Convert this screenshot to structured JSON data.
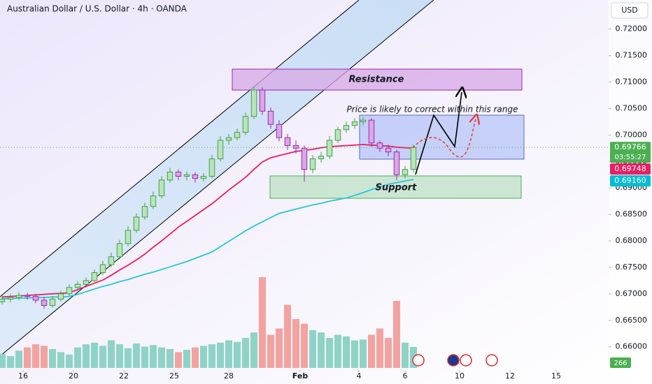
{
  "chart_data": {
    "type": "candlestick",
    "title": "Australian Dollar / U.S. Dollar · 4h · OANDA",
    "currency": "USD",
    "up_color": "#43a047",
    "up_fill": "#b9e4bb",
    "down_color": "#9c27b0",
    "down_fill": "#d7a8e3",
    "volume_up_color": "#8fd3c6",
    "volume_down_color": "#f2a3a0",
    "x": [
      0,
      2,
      4,
      6,
      8,
      10,
      12,
      14,
      16,
      18,
      20,
      22,
      24,
      26,
      28,
      30,
      32,
      34,
      36,
      38,
      40,
      42,
      44,
      46,
      48,
      50,
      52,
      54,
      56,
      58,
      60,
      62,
      64,
      66,
      68,
      70,
      72,
      74,
      76,
      78,
      80,
      82,
      84,
      86,
      88,
      90,
      92,
      94,
      96,
      98
    ],
    "open": [
      0.6685,
      0.669,
      0.6693,
      0.6697,
      0.6695,
      0.6688,
      0.6678,
      0.669,
      0.67,
      0.6712,
      0.6718,
      0.6725,
      0.674,
      0.6755,
      0.677,
      0.6795,
      0.682,
      0.6845,
      0.6865,
      0.6885,
      0.6915,
      0.693,
      0.6922,
      0.6925,
      0.6918,
      0.6922,
      0.6955,
      0.699,
      0.6995,
      0.7005,
      0.7035,
      0.7085,
      0.7045,
      0.702,
      0.6995,
      0.698,
      0.6975,
      0.6935,
      0.6955,
      0.696,
      0.699,
      0.701,
      0.7018,
      0.7025,
      0.7028,
      0.6985,
      0.6975,
      0.6968,
      0.6925,
      0.6935
    ],
    "high": [
      0.6697,
      0.67,
      0.6703,
      0.6702,
      0.67,
      0.6694,
      0.6696,
      0.6706,
      0.6718,
      0.6724,
      0.6731,
      0.6746,
      0.6762,
      0.6778,
      0.6802,
      0.6828,
      0.6852,
      0.6872,
      0.6893,
      0.6922,
      0.6938,
      0.6935,
      0.6931,
      0.693,
      0.6928,
      0.6962,
      0.6998,
      0.7002,
      0.7012,
      0.7042,
      0.7092,
      0.709,
      0.7052,
      0.7028,
      0.7002,
      0.699,
      0.698,
      0.6962,
      0.6968,
      0.6998,
      0.7016,
      0.7025,
      0.7032,
      0.7034,
      0.7032,
      0.699,
      0.6982,
      0.6972,
      0.6942,
      0.6982
    ],
    "low": [
      0.668,
      0.6684,
      0.6688,
      0.6689,
      0.6682,
      0.6672,
      0.6674,
      0.6686,
      0.6696,
      0.6706,
      0.6712,
      0.672,
      0.6735,
      0.675,
      0.6765,
      0.679,
      0.6815,
      0.684,
      0.686,
      0.688,
      0.691,
      0.6915,
      0.6914,
      0.691,
      0.6912,
      0.6918,
      0.695,
      0.6982,
      0.699,
      0.7,
      0.703,
      0.7038,
      0.7012,
      0.6988,
      0.6972,
      0.6965,
      0.6912,
      0.6928,
      0.6948,
      0.6955,
      0.6985,
      0.7004,
      0.7012,
      0.7018,
      0.6978,
      0.6968,
      0.696,
      0.6915,
      0.6918,
      0.693
    ],
    "close": [
      0.669,
      0.6693,
      0.6697,
      0.6695,
      0.6688,
      0.6678,
      0.669,
      0.67,
      0.6712,
      0.6718,
      0.6725,
      0.674,
      0.6755,
      0.677,
      0.6795,
      0.682,
      0.6845,
      0.6865,
      0.6885,
      0.6915,
      0.693,
      0.6922,
      0.6925,
      0.6918,
      0.6922,
      0.6955,
      0.699,
      0.6995,
      0.7005,
      0.7035,
      0.7085,
      0.7045,
      0.702,
      0.6995,
      0.698,
      0.6975,
      0.6935,
      0.6955,
      0.696,
      0.699,
      0.701,
      0.7018,
      0.7025,
      0.7028,
      0.6985,
      0.6975,
      0.6968,
      0.6925,
      0.6935,
      0.69766
    ],
    "volume": [
      180,
      150,
      220,
      260,
      300,
      280,
      240,
      200,
      170,
      260,
      300,
      320,
      280,
      350,
      300,
      250,
      310,
      270,
      290,
      260,
      240,
      200,
      230,
      260,
      280,
      300,
      320,
      350,
      330,
      380,
      450,
      1150,
      420,
      500,
      800,
      620,
      560,
      480,
      450,
      380,
      420,
      400,
      350,
      360,
      420,
      500,
      380,
      850,
      320,
      266
    ],
    "series": [
      {
        "color": "#e91e63",
        "values": [
          0.6694,
          0.6695,
          0.6696,
          0.6697,
          0.6698,
          0.6699,
          0.67,
          0.6701,
          0.6702,
          0.6708,
          0.6714,
          0.672,
          0.6726,
          0.6735,
          0.6745,
          0.6754,
          0.6764,
          0.6775,
          0.6788,
          0.68,
          0.6813,
          0.6826,
          0.6837,
          0.6848,
          0.6859,
          0.687,
          0.6883,
          0.6896,
          0.6908,
          0.692,
          0.6935,
          0.6949,
          0.6957,
          0.6961,
          0.6965,
          0.6969,
          0.6971,
          0.6973,
          0.6976,
          0.6978,
          0.6979,
          0.698,
          0.6981,
          0.6982,
          0.6981,
          0.698,
          0.6979,
          0.6977,
          0.6976,
          0.6975
        ]
      },
      {
        "color": "#26c6da",
        "values": [
          0.6691,
          0.6691,
          0.6692,
          0.6692,
          0.6693,
          0.6693,
          0.6694,
          0.6694,
          0.6695,
          0.6699,
          0.6704,
          0.6709,
          0.6714,
          0.6718,
          0.6723,
          0.6727,
          0.6732,
          0.6737,
          0.6741,
          0.6746,
          0.6751,
          0.6756,
          0.6761,
          0.6767,
          0.6773,
          0.6779,
          0.6789,
          0.6799,
          0.6809,
          0.6819,
          0.6828,
          0.6836,
          0.6844,
          0.6852,
          0.6856,
          0.686,
          0.6864,
          0.6868,
          0.6871,
          0.6875,
          0.6878,
          0.6881,
          0.6886,
          0.6891,
          0.6897,
          0.6902,
          0.6907,
          0.691,
          0.6913,
          0.6916
        ]
      }
    ],
    "xlim": [
      -0.5,
      144.5
    ],
    "xticks": [
      {
        "value": 5,
        "label": "16"
      },
      {
        "value": 17,
        "label": "20"
      },
      {
        "value": 29,
        "label": "22"
      },
      {
        "value": 41,
        "label": "25"
      },
      {
        "value": 54,
        "label": "28"
      },
      {
        "value": 71,
        "label": "Feb"
      },
      {
        "value": 85,
        "label": "4"
      },
      {
        "value": 96,
        "label": "6"
      },
      {
        "value": 109,
        "label": "10"
      },
      {
        "value": 121,
        "label": "12"
      },
      {
        "value": 132,
        "label": "15"
      }
    ],
    "ylim": [
      0.656,
      0.7255
    ],
    "yticks": [
      {
        "value": 0.72,
        "label": "0.72000"
      },
      {
        "value": 0.715,
        "label": "0.71500"
      },
      {
        "value": 0.71,
        "label": "0.71000"
      },
      {
        "value": 0.705,
        "label": "0.70500"
      },
      {
        "value": 0.7,
        "label": "0.70000"
      },
      {
        "value": 0.695,
        "label": "0.69500"
      },
      {
        "value": 0.69,
        "label": "0.69000"
      },
      {
        "value": 0.685,
        "label": "0.68500"
      },
      {
        "value": 0.68,
        "label": "0.68000"
      },
      {
        "value": 0.675,
        "label": "0.67500"
      },
      {
        "value": 0.67,
        "label": "0.67000"
      },
      {
        "value": 0.665,
        "label": "0.66500"
      },
      {
        "value": 0.66,
        "label": "0.66000"
      }
    ],
    "grid": false,
    "price_tags": [
      {
        "price": 0.69766,
        "color": "#4caf50",
        "countdown": "03:55:27"
      },
      {
        "price": 0.69748,
        "color": "#e91e63"
      },
      {
        "price": {
          "value": 0.6916,
          "label": "0.69160"
        },
        "color": "#00bcd4"
      }
    ],
    "annotations": {
      "resistance": "Resistance",
      "support": "Support",
      "note": "Price is likely to correct within this range"
    }
  }
}
